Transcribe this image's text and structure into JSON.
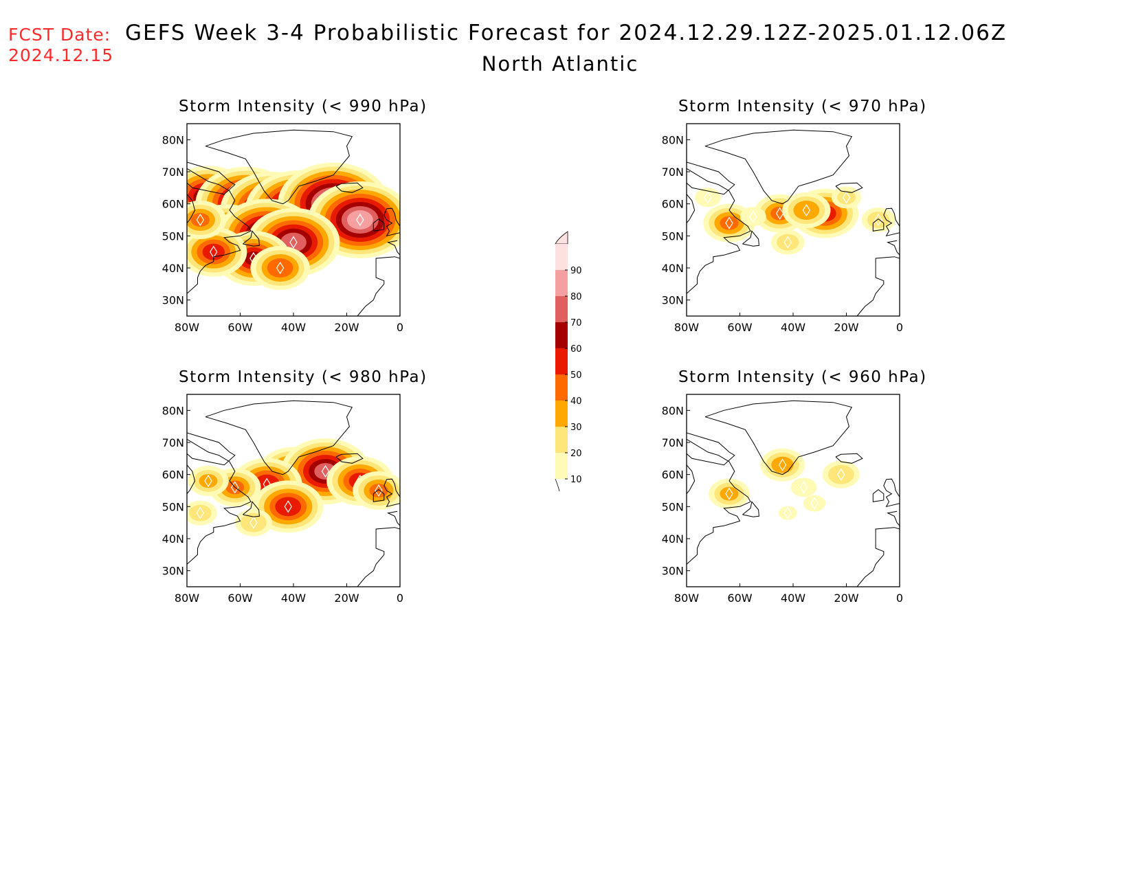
{
  "header": {
    "fcst_label": "FCST Date:",
    "fcst_date": "2024.12.15",
    "title": "GEFS Week 3-4 Probabilistic Forecast for 2024.12.29.12Z-2025.01.12.06Z",
    "region": "North Atlantic"
  },
  "map_axes": {
    "lat_ticks": [
      "80N",
      "70N",
      "60N",
      "50N",
      "40N",
      "30N"
    ],
    "lon_ticks": [
      "80W",
      "60W",
      "40W",
      "20W",
      "0"
    ],
    "lat_range": [
      25,
      85
    ],
    "lon_range": [
      -80,
      0
    ]
  },
  "colorbar": {
    "levels": [
      10,
      20,
      30,
      40,
      50,
      60,
      70,
      80,
      90
    ],
    "labels": [
      "10",
      "20",
      "30",
      "40",
      "50",
      "60",
      "70",
      "80",
      "90"
    ],
    "colors": [
      "#fffbb6",
      "#ffe67a",
      "#ffa800",
      "#ff6a00",
      "#e81a00",
      "#a50000",
      "#e06060",
      "#f5a0a0",
      "#fde0e0"
    ]
  },
  "panels": [
    {
      "title": "Storm Intensity (< 990 hPa)",
      "threshold_hpa": 990,
      "prob_fields": [
        {
          "lon": -72,
          "lat": 62,
          "level": 70
        },
        {
          "lon": -58,
          "lat": 60,
          "level": 80
        },
        {
          "lon": -48,
          "lat": 58,
          "level": 80
        },
        {
          "lon": -38,
          "lat": 58,
          "level": 90
        },
        {
          "lon": -25,
          "lat": 60,
          "level": 90
        },
        {
          "lon": -15,
          "lat": 55,
          "level": 80
        },
        {
          "lon": -65,
          "lat": 50,
          "level": 70
        },
        {
          "lon": -50,
          "lat": 50,
          "level": 80
        },
        {
          "lon": -40,
          "lat": 48,
          "level": 70
        },
        {
          "lon": -55,
          "lat": 43,
          "level": 60
        },
        {
          "lon": -70,
          "lat": 45,
          "level": 50
        },
        {
          "lon": -45,
          "lat": 40,
          "level": 40
        },
        {
          "lon": -75,
          "lat": 55,
          "level": 40
        }
      ]
    },
    {
      "title": "Storm Intensity (< 970 hPa)",
      "threshold_hpa": 970,
      "prob_fields": [
        {
          "lon": -45,
          "lat": 57,
          "level": 40
        },
        {
          "lon": -28,
          "lat": 57,
          "level": 50
        },
        {
          "lon": -35,
          "lat": 58,
          "level": 30
        },
        {
          "lon": -64,
          "lat": 54,
          "level": 40
        },
        {
          "lon": -42,
          "lat": 48,
          "level": 20
        },
        {
          "lon": -55,
          "lat": 56,
          "level": 10
        },
        {
          "lon": -20,
          "lat": 62,
          "level": 20
        },
        {
          "lon": -8,
          "lat": 55,
          "level": 20
        },
        {
          "lon": -72,
          "lat": 62,
          "level": 10
        }
      ]
    },
    {
      "title": "Storm Intensity (< 980 hPa)",
      "threshold_hpa": 980,
      "prob_fields": [
        {
          "lon": -40,
          "lat": 60,
          "level": 60
        },
        {
          "lon": -28,
          "lat": 61,
          "level": 70
        },
        {
          "lon": -50,
          "lat": 57,
          "level": 50
        },
        {
          "lon": -62,
          "lat": 56,
          "level": 40
        },
        {
          "lon": -15,
          "lat": 58,
          "level": 50
        },
        {
          "lon": -42,
          "lat": 50,
          "level": 50
        },
        {
          "lon": -72,
          "lat": 58,
          "level": 30
        },
        {
          "lon": -75,
          "lat": 48,
          "level": 20
        },
        {
          "lon": -55,
          "lat": 45,
          "level": 20
        },
        {
          "lon": -8,
          "lat": 55,
          "level": 40
        }
      ]
    },
    {
      "title": "Storm Intensity (< 960 hPa)",
      "threshold_hpa": 960,
      "prob_fields": [
        {
          "lon": -64,
          "lat": 54,
          "level": 30
        },
        {
          "lon": -44,
          "lat": 63,
          "level": 30
        },
        {
          "lon": -22,
          "lat": 60,
          "level": 20
        },
        {
          "lon": -42,
          "lat": 48,
          "level": 10
        },
        {
          "lon": -32,
          "lat": 51,
          "level": 10
        },
        {
          "lon": -36,
          "lat": 56,
          "level": 10
        }
      ]
    }
  ]
}
